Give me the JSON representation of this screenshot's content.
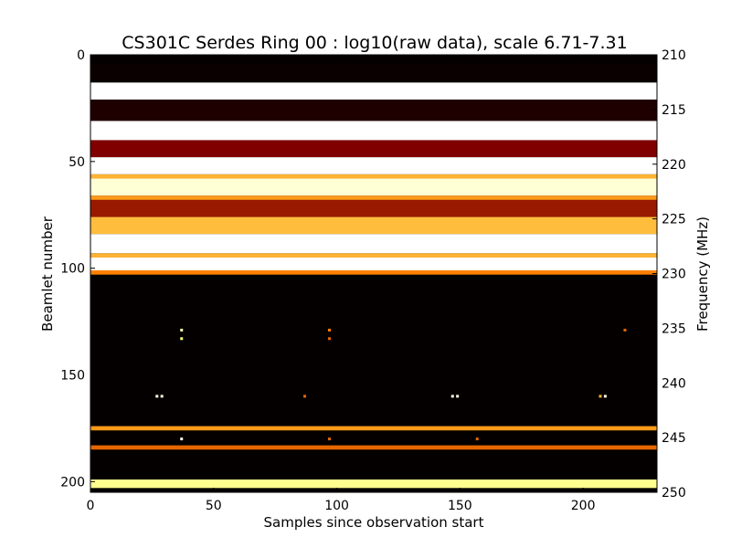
{
  "chart_data": {
    "type": "heatmap",
    "title": "CS301C Serdes Ring 00 : log10(raw data), scale 6.71-7.31",
    "xlabel": "Samples since observation start",
    "ylabel": "Beamlet number",
    "y2label": "Frequency (MHz)",
    "xlim": [
      0,
      230
    ],
    "ylim": [
      205,
      0
    ],
    "y2lim": [
      210,
      250
    ],
    "xticks": [
      0,
      50,
      100,
      150,
      200
    ],
    "yticks": [
      0,
      50,
      100,
      150,
      200
    ],
    "y2ticks": [
      210,
      215,
      220,
      225,
      230,
      235,
      240,
      245,
      250
    ],
    "color_scale": [
      6.71,
      7.31
    ],
    "colormap": "afmhot",
    "background_level": 0.02,
    "bands": [
      {
        "y0": 4,
        "y1": 13,
        "level": 0.02
      },
      {
        "y0": 13,
        "y1": 21,
        "level": 1.0
      },
      {
        "y0": 21,
        "y1": 31,
        "level": 0.06
      },
      {
        "y0": 31,
        "y1": 40,
        "level": 1.0
      },
      {
        "y0": 40,
        "y1": 48,
        "level": 0.25
      },
      {
        "y0": 48,
        "y1": 56,
        "level": 1.0
      },
      {
        "y0": 56,
        "y1": 58,
        "level": 0.6
      },
      {
        "y0": 58,
        "y1": 66,
        "level": 0.92
      },
      {
        "y0": 66,
        "y1": 68,
        "level": 0.55
      },
      {
        "y0": 68,
        "y1": 76,
        "level": 0.3
      },
      {
        "y0": 76,
        "y1": 84,
        "level": 0.62
      },
      {
        "y0": 84,
        "y1": 93,
        "level": 1.0
      },
      {
        "y0": 93,
        "y1": 95,
        "level": 0.6
      },
      {
        "y0": 95,
        "y1": 101,
        "level": 1.0
      },
      {
        "y0": 101,
        "y1": 103,
        "level": 0.5
      },
      {
        "y0": 174,
        "y1": 176,
        "level": 0.55
      },
      {
        "y0": 183,
        "y1": 185,
        "level": 0.45
      },
      {
        "y0": 199,
        "y1": 203,
        "level": 0.78
      }
    ],
    "spots": [
      {
        "x": 37,
        "y": 129,
        "level": 0.85
      },
      {
        "x": 37,
        "y": 133,
        "level": 0.75
      },
      {
        "x": 97,
        "y": 129,
        "level": 0.5
      },
      {
        "x": 97,
        "y": 133,
        "level": 0.45
      },
      {
        "x": 217,
        "y": 129,
        "level": 0.45
      },
      {
        "x": 27,
        "y": 160,
        "level": 0.95
      },
      {
        "x": 29,
        "y": 160,
        "level": 0.95
      },
      {
        "x": 87,
        "y": 160,
        "level": 0.45
      },
      {
        "x": 147,
        "y": 160,
        "level": 0.95
      },
      {
        "x": 149,
        "y": 160,
        "level": 0.95
      },
      {
        "x": 207,
        "y": 160,
        "level": 0.6
      },
      {
        "x": 209,
        "y": 160,
        "level": 0.95
      },
      {
        "x": 37,
        "y": 180,
        "level": 0.95
      },
      {
        "x": 97,
        "y": 180,
        "level": 0.45
      },
      {
        "x": 157,
        "y": 180,
        "level": 0.45
      }
    ]
  }
}
